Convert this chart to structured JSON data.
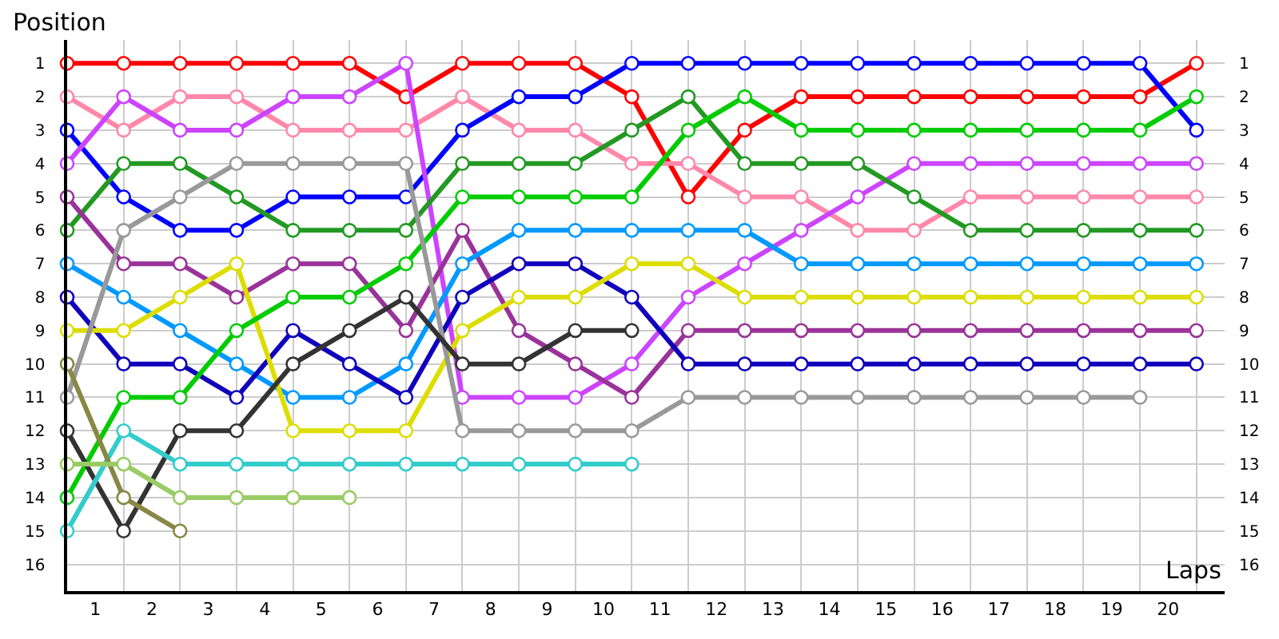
{
  "chart_data": {
    "type": "line",
    "xlabel": "Laps",
    "ylabel": "Position",
    "x": [
      0,
      1,
      2,
      3,
      4,
      5,
      6,
      7,
      8,
      9,
      10,
      11,
      12,
      13,
      14,
      15,
      16,
      17,
      18,
      19,
      20
    ],
    "xlim": [
      0,
      20.5
    ],
    "xticks": [
      {
        "value": 0.5,
        "label": "1"
      },
      {
        "value": 1.5,
        "label": "2"
      },
      {
        "value": 2.5,
        "label": "3"
      },
      {
        "value": 3.5,
        "label": "4"
      },
      {
        "value": 4.5,
        "label": "5"
      },
      {
        "value": 5.5,
        "label": "6"
      },
      {
        "value": 6.5,
        "label": "7"
      },
      {
        "value": 7.5,
        "label": "8"
      },
      {
        "value": 8.5,
        "label": "9"
      },
      {
        "value": 9.5,
        "label": "10"
      },
      {
        "value": 10.5,
        "label": "11"
      },
      {
        "value": 11.5,
        "label": "12"
      },
      {
        "value": 12.5,
        "label": "13"
      },
      {
        "value": 13.5,
        "label": "14"
      },
      {
        "value": 14.5,
        "label": "15"
      },
      {
        "value": 15.5,
        "label": "16"
      },
      {
        "value": 16.5,
        "label": "17"
      },
      {
        "value": 17.5,
        "label": "18"
      },
      {
        "value": 18.5,
        "label": "19"
      },
      {
        "value": 19.5,
        "label": "20"
      }
    ],
    "ylim": [
      16.8,
      0.3
    ],
    "yticks": [
      1,
      2,
      3,
      4,
      5,
      6,
      7,
      8,
      9,
      10,
      11,
      12,
      13,
      14,
      15,
      16
    ],
    "y2lim": [
      16.8,
      0.3
    ],
    "y2ticks": [
      1,
      2,
      3,
      4,
      5,
      6,
      7,
      8,
      9,
      10,
      11,
      12,
      13,
      14,
      15,
      16
    ],
    "grid": true,
    "legend": false,
    "marker": "circle",
    "line_style": "solid",
    "series": [
      {
        "color": "#ff0000",
        "values": [
          1,
          1,
          1,
          1,
          1,
          1,
          2,
          1,
          1,
          1,
          2,
          5,
          3,
          2,
          2,
          2,
          2,
          2,
          2,
          2,
          1
        ]
      },
      {
        "color": "#ff88aa",
        "values": [
          2,
          3,
          2,
          2,
          3,
          3,
          3,
          2,
          3,
          3,
          4,
          4,
          5,
          5,
          6,
          6,
          5,
          5,
          5,
          5,
          5
        ]
      },
      {
        "color": "#0000ff",
        "values": [
          3,
          5,
          6,
          6,
          5,
          5,
          5,
          3,
          2,
          2,
          1,
          1,
          1,
          1,
          1,
          1,
          1,
          1,
          1,
          1,
          3
        ]
      },
      {
        "color": "#cc44ff",
        "values": [
          4,
          2,
          3,
          3,
          2,
          2,
          1,
          11,
          11,
          11,
          10,
          8,
          7,
          6,
          5,
          4,
          4,
          4,
          4,
          4,
          4
        ]
      },
      {
        "color": "#229922",
        "values": [
          6,
          4,
          4,
          5,
          6,
          6,
          6,
          4,
          4,
          4,
          3,
          2,
          4,
          4,
          4,
          5,
          6,
          6,
          6,
          6,
          6
        ]
      },
      {
        "color": "#993399",
        "values": [
          5,
          7,
          7,
          8,
          7,
          7,
          9,
          6,
          9,
          10,
          11,
          9,
          9,
          9,
          9,
          9,
          9,
          9,
          9,
          9,
          9
        ]
      },
      {
        "color": "#0099ff",
        "values": [
          7,
          8,
          9,
          10,
          11,
          11,
          10,
          7,
          6,
          6,
          6,
          6,
          6,
          7,
          7,
          7,
          7,
          7,
          7,
          7,
          7
        ]
      },
      {
        "color": "#1100bb",
        "values": [
          8,
          10,
          10,
          11,
          9,
          10,
          11,
          8,
          7,
          7,
          8,
          10,
          10,
          10,
          10,
          10,
          10,
          10,
          10,
          10,
          10
        ]
      },
      {
        "color": "#dddd00",
        "values": [
          9,
          9,
          8,
          7,
          12,
          12,
          12,
          9,
          8,
          8,
          7,
          7,
          8,
          8,
          8,
          8,
          8,
          8,
          8,
          8,
          8
        ]
      },
      {
        "color": "#00cc00",
        "values": [
          14,
          11,
          11,
          9,
          8,
          8,
          7,
          5,
          5,
          5,
          5,
          3,
          2,
          3,
          3,
          3,
          3,
          3,
          3,
          3,
          2
        ]
      },
      {
        "color": "#999999",
        "values": [
          11,
          6,
          5,
          4,
          4,
          4,
          4,
          12,
          12,
          12,
          12,
          11,
          11,
          11,
          11,
          11,
          11,
          11,
          11,
          11,
          null
        ]
      },
      {
        "color": "#333333",
        "values": [
          12,
          15,
          12,
          12,
          10,
          9,
          8,
          10,
          10,
          9,
          9,
          null,
          null,
          null,
          null,
          null,
          null,
          null,
          null,
          null,
          null
        ]
      },
      {
        "color": "#33cccc",
        "values": [
          15,
          12,
          13,
          13,
          13,
          13,
          13,
          13,
          13,
          13,
          13,
          null,
          null,
          null,
          null,
          null,
          null,
          null,
          null,
          null,
          null
        ]
      },
      {
        "color": "#888844",
        "values": [
          10,
          14,
          15,
          null,
          null,
          null,
          null,
          null,
          null,
          null,
          null,
          null,
          null,
          null,
          null,
          null,
          null,
          null,
          null,
          null,
          null
        ]
      },
      {
        "color": "#99cc66",
        "values": [
          13,
          13,
          14,
          14,
          14,
          14,
          null,
          null,
          null,
          null,
          null,
          null,
          null,
          null,
          null,
          null,
          null,
          null,
          null,
          null,
          null
        ]
      }
    ]
  }
}
